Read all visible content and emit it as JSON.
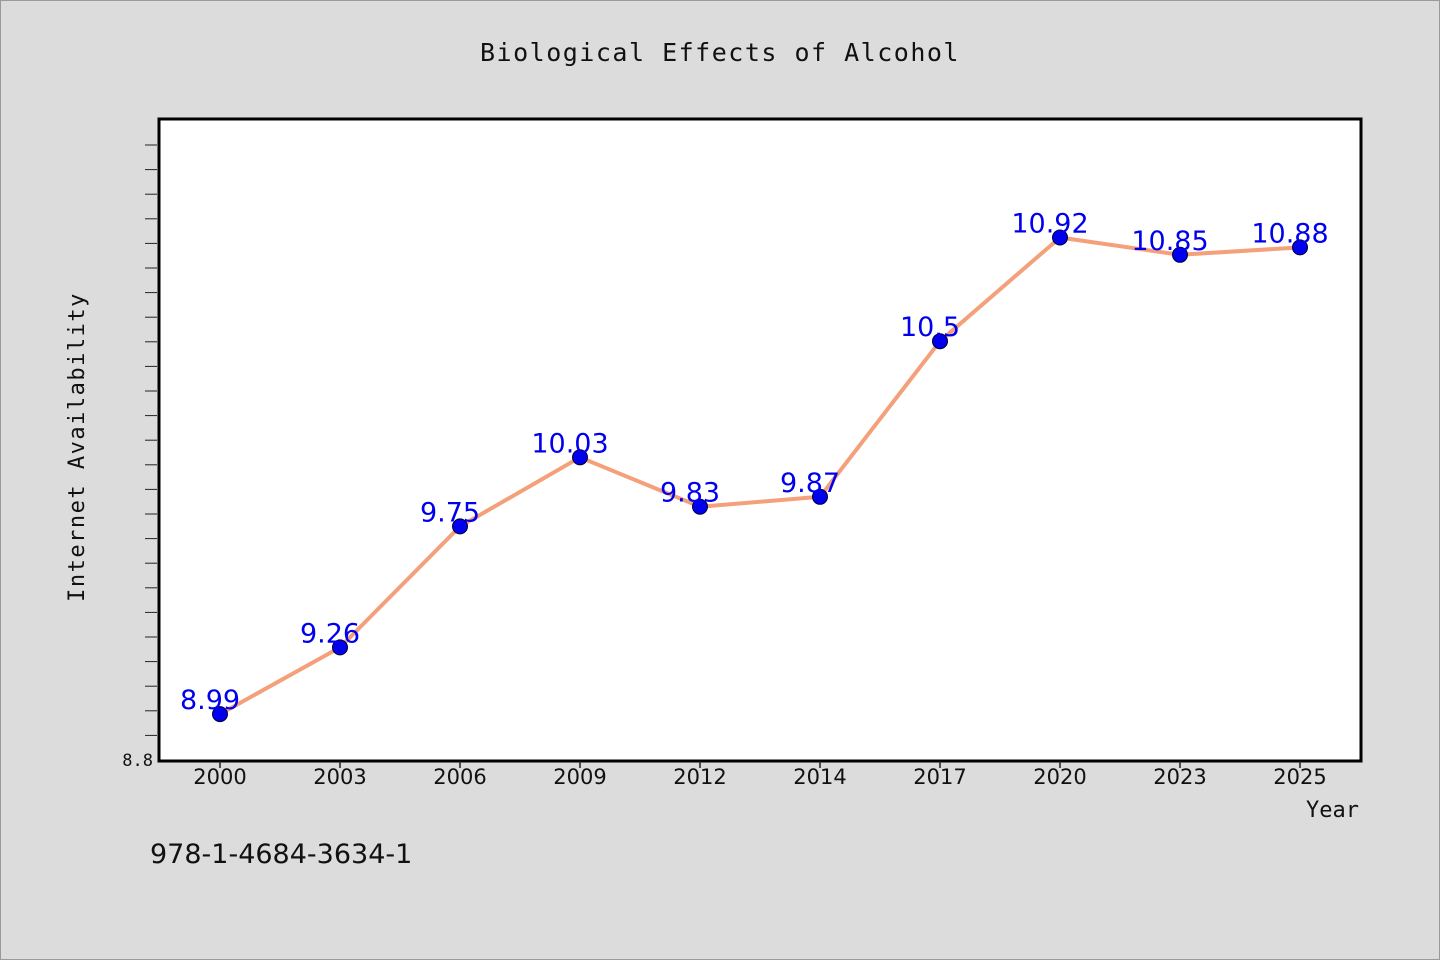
{
  "chart_data": {
    "type": "line",
    "title": "Biological Effects of Alcohol",
    "xlabel": "Year",
    "ylabel": "Internet Availability",
    "categories": [
      "2000",
      "2003",
      "2006",
      "2009",
      "2012",
      "2014",
      "2017",
      "2020",
      "2023",
      "2025"
    ],
    "series": [
      {
        "values": [
          8.99,
          9.26,
          9.75,
          10.03,
          9.83,
          9.87,
          10.5,
          10.92,
          10.85,
          10.88
        ],
        "labels": [
          "8.99",
          "9.26",
          "9.75",
          "10.03",
          "9.83",
          "9.87",
          "10.5",
          "10.92",
          "10.85",
          "10.88"
        ],
        "line_color": "#f4a07a",
        "marker_color": "#0000ee"
      }
    ],
    "ylim": [
      8.8,
      11.4
    ],
    "y_tick_labels": [
      "8.8"
    ],
    "grid": false,
    "label_color": "#0000ee"
  },
  "footer_text": "978-1-4684-3634-1"
}
